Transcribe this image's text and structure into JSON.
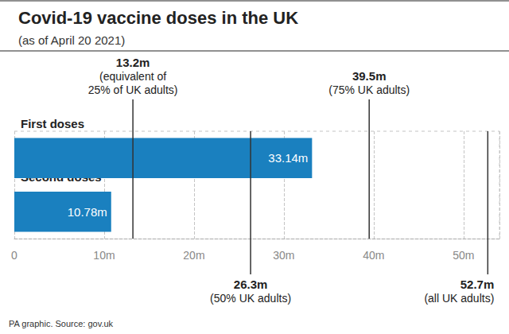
{
  "chart_data": {
    "type": "bar",
    "orientation": "horizontal",
    "title": "Covid-19 vaccine doses in the UK",
    "subtitle": "(as of April 20 2021)",
    "source": "PA graphic. Source: gov.uk",
    "categories": [
      "First doses",
      "Second doses"
    ],
    "values": [
      33.14,
      10.78
    ],
    "value_labels": [
      "33.14m",
      "10.78m"
    ],
    "data_labels": true,
    "color": "#1a80bf",
    "xlim": [
      0,
      54
    ],
    "xticks": [
      0,
      {
        "value": 10,
        "label": "10m"
      },
      {
        "value": 20,
        "label": "20m"
      },
      {
        "value": 30,
        "label": "30m"
      },
      {
        "value": 40,
        "label": "40m"
      },
      {
        "value": 50,
        "label": "50m"
      }
    ],
    "grid": true,
    "annotations": [
      {
        "value": 13.2,
        "text": "13.2m\n(equivalent of\n25% of UK adults)"
      },
      {
        "value": 26.3,
        "text": "26.3m\n(50% UK adults)"
      },
      {
        "value": 39.5,
        "text": "39.5m\n(75% UK adults)"
      },
      {
        "value": 52.7,
        "text": "52.7m\n(all UK adults)"
      }
    ]
  }
}
